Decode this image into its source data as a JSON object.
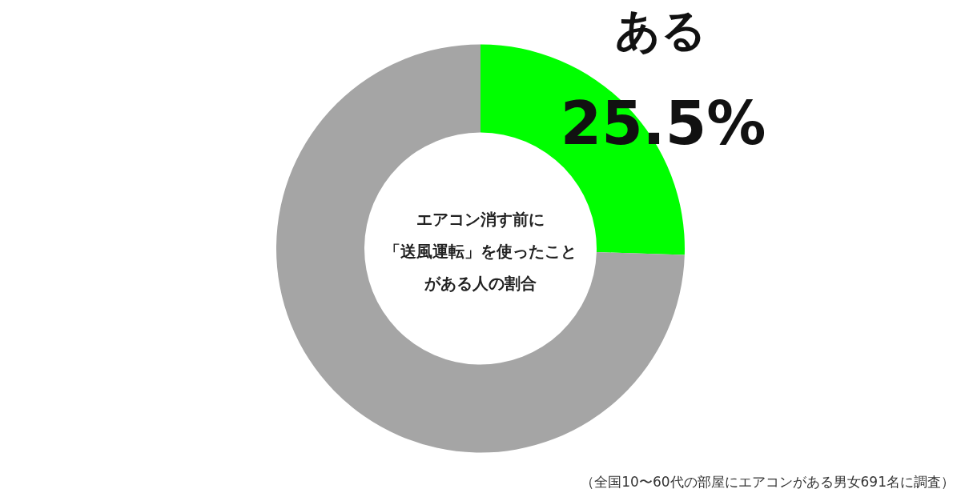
{
  "chart_data": {
    "type": "donut",
    "categories": [
      "ある",
      null
    ],
    "values": [
      25.5,
      74.5
    ],
    "colors": [
      "#00ff00",
      "#a5a5a5"
    ],
    "value_labels": [
      "25.5%",
      null
    ],
    "annotations": [
      "エアコン消す前に",
      "「送風運転」を使ったこと",
      "がある人の割合",
      "（全国10〜60代の部屋にエアコンがある男女691名に調査）"
    ]
  }
}
